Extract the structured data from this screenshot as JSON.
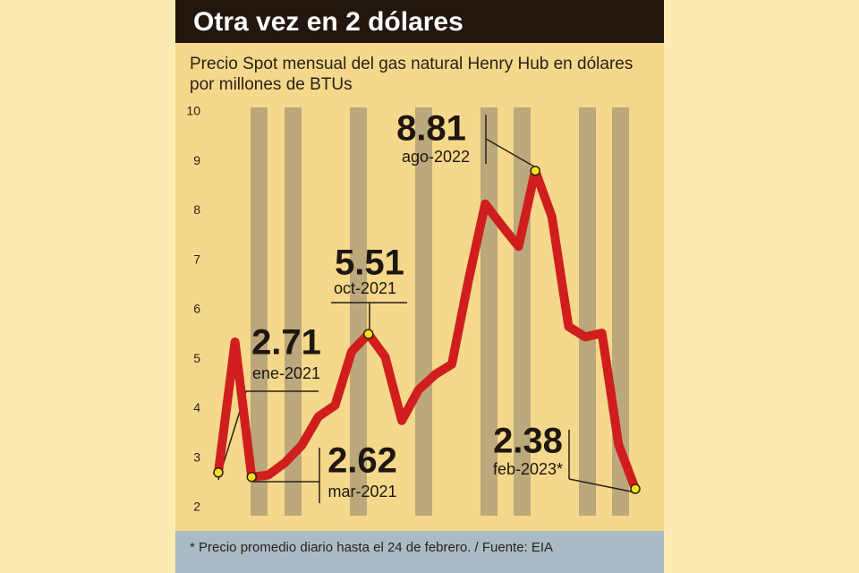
{
  "chart_data": {
    "type": "line",
    "title": "Otra vez en 2 dólares",
    "subtitle": [
      "Precio Spot mensual del gas natural Henry Hub en dólares",
      "por millones de BTUs"
    ],
    "note": "* Precio promedio diario hasta el 24 de febrero. / Fuente: EIA",
    "categories": [
      "ene-2021",
      null,
      "mar-2021",
      null,
      null,
      null,
      null,
      null,
      null,
      "oct-2021",
      null,
      null,
      null,
      null,
      null,
      null,
      null,
      null,
      null,
      "ago-2022",
      null,
      null,
      null,
      null,
      null,
      "feb-2023*"
    ],
    "series": [
      {
        "color": "#d01e1e",
        "values": [
          2.71,
          5.35,
          2.62,
          2.66,
          2.91,
          3.26,
          3.84,
          4.07,
          5.16,
          5.51,
          5.05,
          3.76,
          4.38,
          4.69,
          4.9,
          6.6,
          8.14,
          7.7,
          7.28,
          8.81,
          7.88,
          5.66,
          5.45,
          5.53,
          3.27,
          2.38
        ],
        "value_labels": [
          "2.71",
          null,
          "2.62",
          null,
          null,
          null,
          null,
          null,
          null,
          "5.51",
          null,
          null,
          null,
          null,
          null,
          null,
          null,
          null,
          null,
          "8.81",
          null,
          null,
          null,
          null,
          null,
          "2.38"
        ]
      }
    ],
    "ylim": [
      2,
      10
    ],
    "yticks": [
      2,
      3,
      4,
      5,
      6,
      7,
      8,
      9,
      10
    ],
    "grid": false
  }
}
